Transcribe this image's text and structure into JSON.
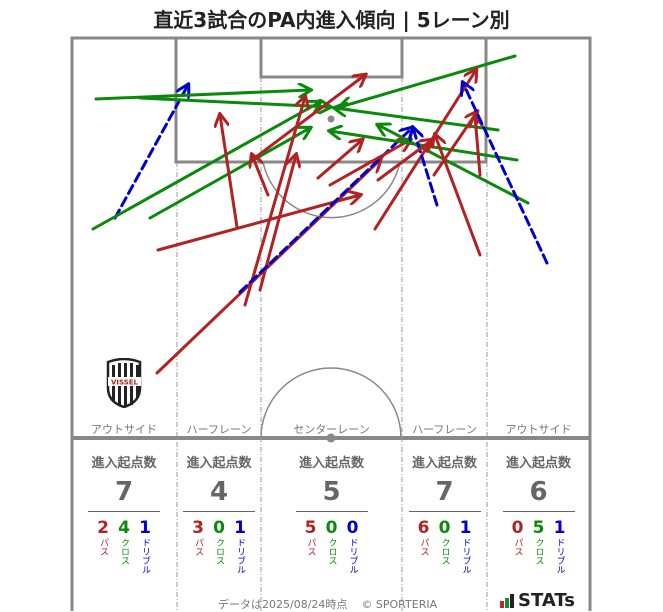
{
  "title": "直近3試合のPA内進入傾向 | 5レーン別",
  "colors": {
    "pass": "#b22222",
    "cross": "#0a8a0a",
    "dribble": "#0000cc",
    "pitch_line": "#888888",
    "text_gray": "#666666"
  },
  "lanes": [
    {
      "label": "アウトサイド",
      "total": "7",
      "pass": "2",
      "cross": "4",
      "dribble": "1"
    },
    {
      "label": "ハーフレーン",
      "total": "4",
      "pass": "3",
      "cross": "0",
      "dribble": "1"
    },
    {
      "label": "センターレーン",
      "total": "5",
      "pass": "5",
      "cross": "0",
      "dribble": "0"
    },
    {
      "label": "ハーフレーン",
      "total": "7",
      "pass": "6",
      "cross": "0",
      "dribble": "1"
    },
    {
      "label": "アウトサイド",
      "total": "6",
      "pass": "0",
      "cross": "5",
      "dribble": "1"
    }
  ],
  "stat_header": "進入起点数",
  "type_labels": {
    "pass": "パス",
    "cross": "クロス",
    "dribble": "ドリブル"
  },
  "team_crest": "VISSEL",
  "footer": {
    "data_date": "データは2025/08/24時点",
    "copyright": "© SPORTERIA",
    "brand": "STATs"
  },
  "chart_data": {
    "type": "diagram",
    "title": "直近3試合のPA内進入傾向 | 5レーン別",
    "legend": {
      "pass": "red solid arrow",
      "cross": "green solid arrow",
      "dribble": "blue dashed arrow"
    },
    "lanes": [
      "アウトサイド",
      "ハーフレーン",
      "センターレーン",
      "ハーフレーン",
      "アウトサイド"
    ],
    "entries_by_lane": [
      {
        "lane": "アウトサイド(左)",
        "total": 7,
        "pass": 2,
        "cross": 4,
        "dribble": 1
      },
      {
        "lane": "ハーフレーン(左)",
        "total": 4,
        "pass": 3,
        "cross": 0,
        "dribble": 1
      },
      {
        "lane": "センターレーン",
        "total": 5,
        "pass": 5,
        "cross": 0,
        "dribble": 0
      },
      {
        "lane": "ハーフレーン(右)",
        "total": 7,
        "pass": 6,
        "cross": 0,
        "dribble": 1
      },
      {
        "lane": "アウトサイド(右)",
        "total": 6,
        "pass": 0,
        "cross": 5,
        "dribble": 1
      }
    ],
    "arrows": [
      {
        "type": "dribble",
        "from": [
          115,
          218
        ],
        "to": [
          188,
          85
        ]
      },
      {
        "type": "cross",
        "from": [
          96,
          99
        ],
        "to": [
          310,
          90
        ]
      },
      {
        "type": "cross",
        "from": [
          140,
          98
        ],
        "to": [
          330,
          107
        ]
      },
      {
        "type": "cross",
        "from": [
          93,
          229
        ],
        "to": [
          320,
          102
        ]
      },
      {
        "type": "cross",
        "from": [
          150,
          218
        ],
        "to": [
          310,
          128
        ]
      },
      {
        "type": "pass",
        "from": [
          237,
          227
        ],
        "to": [
          220,
          115
        ]
      },
      {
        "type": "pass",
        "from": [
          158,
          250
        ],
        "to": [
          360,
          195
        ]
      },
      {
        "type": "pass",
        "from": [
          157,
          373
        ],
        "to": [
          380,
          160
        ]
      },
      {
        "type": "pass",
        "from": [
          268,
          195
        ],
        "to": [
          252,
          155
        ]
      },
      {
        "type": "pass",
        "from": [
          245,
          305
        ],
        "to": [
          305,
          97
        ]
      },
      {
        "type": "pass",
        "from": [
          260,
          290
        ],
        "to": [
          296,
          155
        ]
      },
      {
        "type": "dribble",
        "from": [
          240,
          292
        ],
        "to": [
          412,
          128
        ]
      },
      {
        "type": "pass",
        "from": [
          252,
          160
        ],
        "to": [
          365,
          75
        ]
      },
      {
        "type": "pass",
        "from": [
          318,
          178
        ],
        "to": [
          362,
          140
        ]
      },
      {
        "type": "pass",
        "from": [
          330,
          185
        ],
        "to": [
          410,
          140
        ]
      },
      {
        "type": "cross",
        "from": [
          515,
          56
        ],
        "to": [
          340,
          107
        ]
      },
      {
        "type": "cross",
        "from": [
          498,
          130
        ],
        "to": [
          335,
          108
        ]
      },
      {
        "type": "cross",
        "from": [
          517,
          160
        ],
        "to": [
          330,
          131
        ]
      },
      {
        "type": "cross",
        "from": [
          528,
          203
        ],
        "to": [
          378,
          125
        ]
      },
      {
        "type": "pass",
        "from": [
          375,
          229
        ],
        "to": [
          476,
          70
        ]
      },
      {
        "type": "pass",
        "from": [
          434,
          175
        ],
        "to": [
          477,
          112
        ]
      },
      {
        "type": "pass",
        "from": [
          480,
          175
        ],
        "to": [
          475,
          116
        ]
      },
      {
        "type": "pass",
        "from": [
          480,
          255
        ],
        "to": [
          435,
          135
        ]
      },
      {
        "type": "dribble",
        "from": [
          547,
          263
        ],
        "to": [
          463,
          83
        ]
      },
      {
        "type": "dribble",
        "from": [
          437,
          205
        ],
        "to": [
          413,
          128
        ]
      },
      {
        "type": "pass",
        "from": [
          378,
          180
        ],
        "to": [
          432,
          140
        ]
      }
    ]
  }
}
